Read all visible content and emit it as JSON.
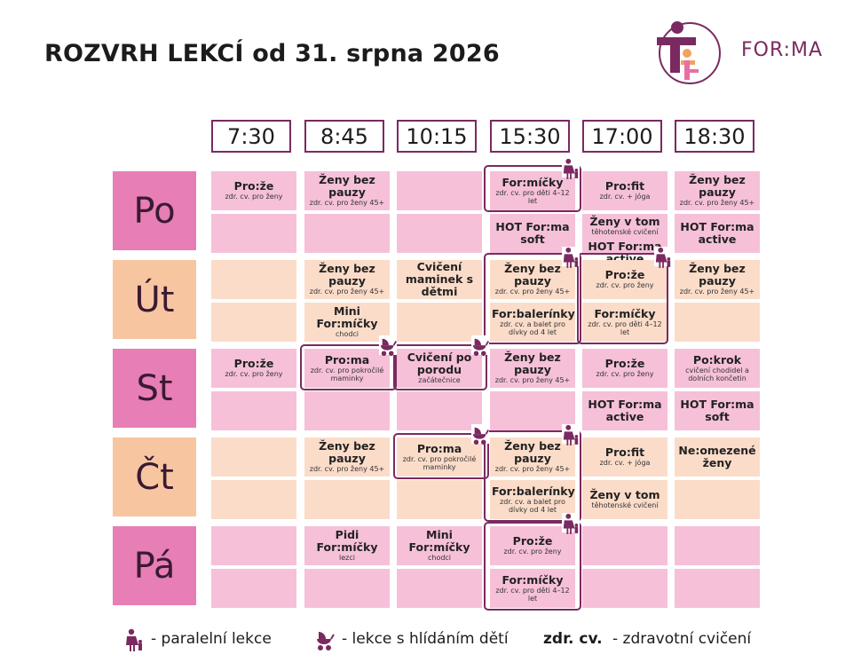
{
  "title": "ROZVRH LEKCÍ od 31. srpna 2026",
  "brand": {
    "name": "FOR:MA",
    "color": "#7a2a60",
    "accent": "#e86fa3",
    "orange": "#f2a25a"
  },
  "colors": {
    "pink_cell": "#f6c0d9",
    "peach_cell": "#fbdcc9",
    "pink_day": "#e77eb5",
    "peach_day": "#f7c6a1"
  },
  "times": [
    "7:30",
    "8:45",
    "10:15",
    "15:30",
    "17:00",
    "18:30"
  ],
  "days": [
    {
      "label": "Po",
      "tone": "pink",
      "cells": [
        [
          {
            "t": "Pro:že",
            "s": "zdr. cv. pro ženy"
          },
          {
            "t": "Ženy bez pauzy",
            "s": "zdr. cv. pro ženy 45+"
          },
          {
            "t": "",
            "s": ""
          },
          {
            "t": "For:míčky",
            "s": "zdr. cv. pro děti 4–12 let"
          },
          {
            "t": "Pro:fit",
            "s": "zdr. cv. + jóga"
          },
          {
            "t": "Ženy bez pauzy",
            "s": "zdr. cv. pro ženy 45+"
          }
        ],
        [
          {
            "t": "",
            "s": ""
          },
          {
            "t": "",
            "s": ""
          },
          {
            "t": "",
            "s": ""
          },
          {
            "t": "HOT For:ma soft",
            "s": ""
          },
          {
            "t": "Ženy v tom",
            "s": "těhotenské cvičení",
            "t2": "HOT For:ma active"
          },
          {
            "t": "HOT For:ma active",
            "s": ""
          }
        ]
      ]
    },
    {
      "label": "Út",
      "tone": "peach",
      "cells": [
        [
          {
            "t": "",
            "s": ""
          },
          {
            "t": "Ženy bez pauzy",
            "s": "zdr. cv. pro ženy 45+"
          },
          {
            "t": "Cvičení maminek s dětmi",
            "s": ""
          },
          {
            "t": "Ženy bez pauzy",
            "s": "zdr. cv. pro ženy 45+"
          },
          {
            "t": "Pro:že",
            "s": "zdr. cv. pro ženy"
          },
          {
            "t": "Ženy bez pauzy",
            "s": "zdr. cv. pro ženy 45+"
          }
        ],
        [
          {
            "t": "",
            "s": ""
          },
          {
            "t": "Mini For:míčky",
            "s": "chodci"
          },
          {
            "t": "",
            "s": ""
          },
          {
            "t": "For:balerínky",
            "s": "zdr. cv. a balet pro dívky od 4 let"
          },
          {
            "t": "For:míčky",
            "s": "zdr. cv. pro děti 4–12 let"
          },
          {
            "t": "",
            "s": ""
          }
        ]
      ]
    },
    {
      "label": "St",
      "tone": "pink",
      "cells": [
        [
          {
            "t": "Pro:že",
            "s": "zdr. cv. pro ženy"
          },
          {
            "t": "Pro:ma",
            "s": "zdr. cv. pro pokročilé maminky"
          },
          {
            "t": "Cvičení po porodu",
            "s": "začátečnice"
          },
          {
            "t": "Ženy bez pauzy",
            "s": "zdr. cv. pro ženy 45+"
          },
          {
            "t": "Pro:že",
            "s": "zdr. cv. pro ženy"
          },
          {
            "t": "Po:krok",
            "s": "cvičení chodidel a dolních končetin"
          }
        ],
        [
          {
            "t": "",
            "s": ""
          },
          {
            "t": "",
            "s": ""
          },
          {
            "t": "",
            "s": ""
          },
          {
            "t": "",
            "s": ""
          },
          {
            "t": "HOT For:ma active",
            "s": ""
          },
          {
            "t": "HOT For:ma soft",
            "s": ""
          }
        ]
      ]
    },
    {
      "label": "Čt",
      "tone": "peach",
      "cells": [
        [
          {
            "t": "",
            "s": ""
          },
          {
            "t": "Ženy bez pauzy",
            "s": "zdr. cv. pro ženy 45+"
          },
          {
            "t": "Pro:ma",
            "s": "zdr. cv. pro pokročilé maminky"
          },
          {
            "t": "Ženy bez pauzy",
            "s": "zdr. cv. pro ženy 45+"
          },
          {
            "t": "Pro:fit",
            "s": "zdr. cv. + jóga"
          },
          {
            "t": "Ne:omezené ženy",
            "s": ""
          }
        ],
        [
          {
            "t": "",
            "s": ""
          },
          {
            "t": "",
            "s": ""
          },
          {
            "t": "",
            "s": ""
          },
          {
            "t": "For:balerínky",
            "s": "zdr. cv. a balet pro dívky od 4 let"
          },
          {
            "t": "Ženy v tom",
            "s": "těhotenské cvičení"
          },
          {
            "t": "",
            "s": ""
          }
        ]
      ]
    },
    {
      "label": "Pá",
      "tone": "pink",
      "cells": [
        [
          {
            "t": "",
            "s": ""
          },
          {
            "t": "Pidi For:míčky",
            "s": "lezci"
          },
          {
            "t": "Mini For:míčky",
            "s": "chodci"
          },
          {
            "t": "Pro:že",
            "s": "zdr. cv. pro ženy"
          },
          {
            "t": "",
            "s": ""
          },
          {
            "t": "",
            "s": ""
          }
        ],
        [
          {
            "t": "",
            "s": ""
          },
          {
            "t": "",
            "s": ""
          },
          {
            "t": "",
            "s": ""
          },
          {
            "t": "For:míčky",
            "s": "zdr. cv. pro děti 4–12 let"
          },
          {
            "t": "",
            "s": ""
          },
          {
            "t": "",
            "s": ""
          }
        ]
      ]
    }
  ],
  "legend": {
    "parallel_icon": "mother-child-icon",
    "parallel_text": "- paralelní lekce",
    "stroller_icon": "stroller-icon",
    "stroller_text": "- lekce s hlídáním dětí",
    "abbr": "zdr. cv.",
    "abbr_text": "- zdravotní cvičení"
  }
}
